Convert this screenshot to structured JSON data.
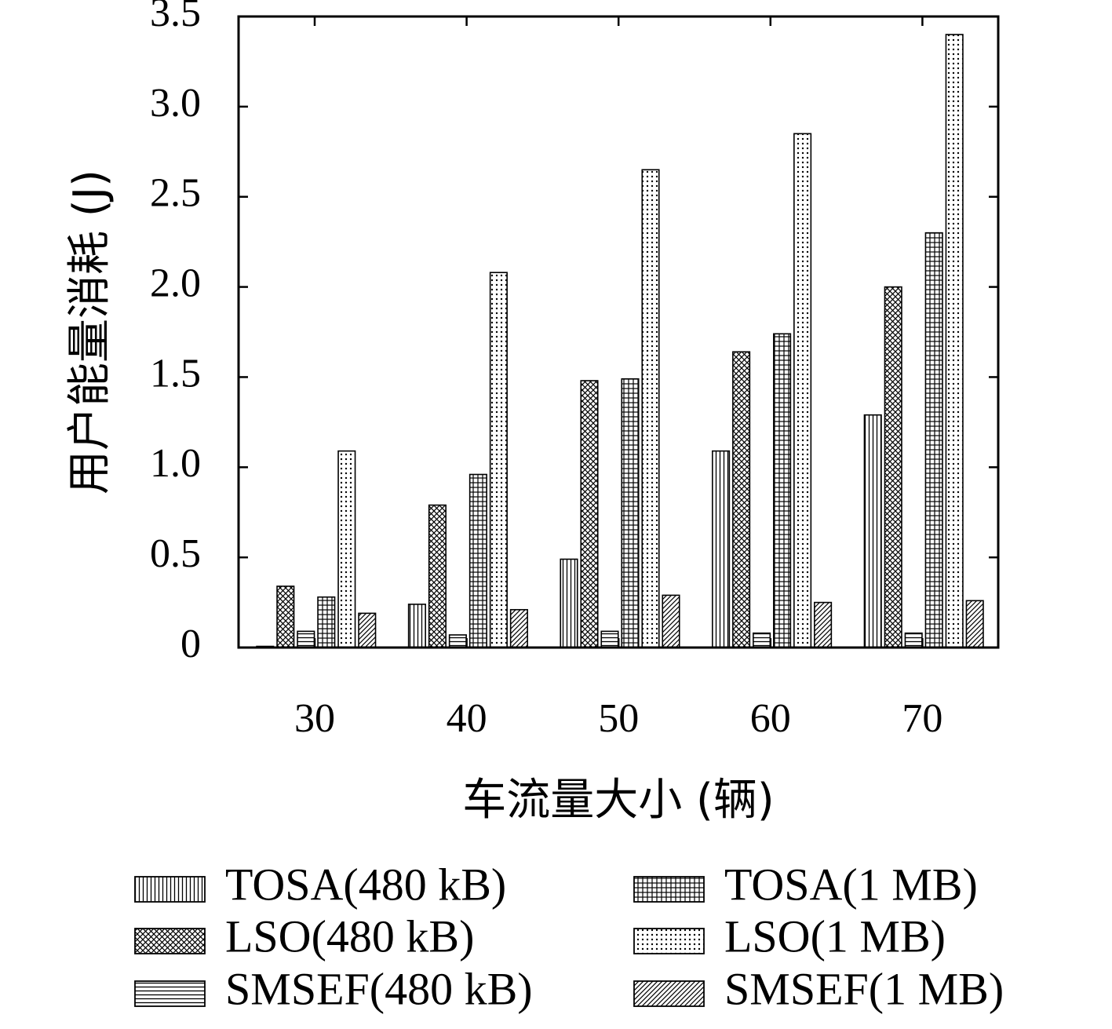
{
  "chart_data": {
    "type": "bar",
    "title": "",
    "xlabel": "车流量大小 (辆)",
    "ylabel": "用户能量消耗 (J)",
    "categories": [
      "30",
      "40",
      "50",
      "60",
      "70"
    ],
    "ylim": [
      0,
      3.5
    ],
    "yticks": [
      0,
      0.5,
      1.0,
      1.5,
      2.0,
      2.5,
      3.0,
      3.5
    ],
    "ytick_labels": [
      "0",
      "0.5",
      "1.0",
      "1.5",
      "2.0",
      "2.5",
      "3.0",
      "3.5"
    ],
    "grid": false,
    "legend_position": "bottom",
    "series": [
      {
        "name": "TOSA(480 kB)",
        "pattern": "vertical-lines",
        "values": [
          0.0,
          0.24,
          0.49,
          1.09,
          1.29
        ]
      },
      {
        "name": "LSO(480 kB)",
        "pattern": "crosshatch",
        "values": [
          0.34,
          0.79,
          1.48,
          1.64,
          2.0
        ]
      },
      {
        "name": "SMSEF(480 kB)",
        "pattern": "horizontal-lines",
        "values": [
          0.09,
          0.07,
          0.09,
          0.08,
          0.08
        ]
      },
      {
        "name": "TOSA(1 MB)",
        "pattern": "grid",
        "values": [
          0.28,
          0.96,
          1.49,
          1.74,
          2.3
        ]
      },
      {
        "name": "LSO(1 MB)",
        "pattern": "dots",
        "values": [
          1.09,
          2.08,
          2.65,
          2.85,
          3.4
        ]
      },
      {
        "name": "SMSEF(1 MB)",
        "pattern": "diagonal-lines",
        "values": [
          0.19,
          0.21,
          0.29,
          0.25,
          0.26
        ]
      }
    ]
  }
}
